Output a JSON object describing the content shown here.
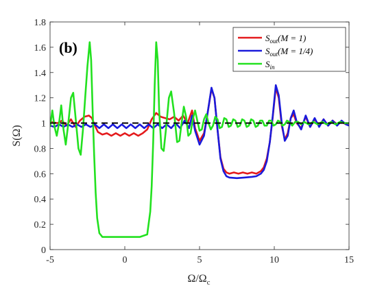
{
  "chart_data": {
    "type": "line",
    "panel_label": "(b)",
    "xlabel": "Ω/Ω",
    "xlabel_sub": "c",
    "ylabel": "S(Ω)",
    "xlim": [
      -5,
      15
    ],
    "ylim": [
      0,
      1.8
    ],
    "xticks": [
      -5,
      0,
      5,
      10,
      15
    ],
    "yticks": [
      0,
      0.2,
      0.4,
      0.6,
      0.8,
      1,
      1.2,
      1.4,
      1.6,
      1.8
    ],
    "xtick_labels": [
      "-5",
      "0",
      "5",
      "10",
      "15"
    ],
    "ytick_labels": [
      "0",
      "0.2",
      "0.4",
      "0.6",
      "0.8",
      "1",
      "1.2",
      "1.4",
      "1.6",
      "1.8"
    ],
    "grid": false,
    "legend_position": "top-right",
    "reference_line": {
      "y": 1,
      "style": "dashed",
      "color": "#000000"
    },
    "series": [
      {
        "name": "S_out(M = 1)",
        "legend_main": "S",
        "legend_sub": "out",
        "legend_tail": "(M = 1)",
        "color": "#e41a1c",
        "points": [
          [
            -5,
            1.01
          ],
          [
            -4.5,
            1.0
          ],
          [
            -4.2,
            1.02
          ],
          [
            -3.9,
            0.98
          ],
          [
            -3.6,
            1.03
          ],
          [
            -3.3,
            0.97
          ],
          [
            -3.0,
            1.02
          ],
          [
            -2.7,
            1.05
          ],
          [
            -2.4,
            1.06
          ],
          [
            -2.2,
            1.04
          ],
          [
            -2.0,
            0.98
          ],
          [
            -1.8,
            0.93
          ],
          [
            -1.5,
            0.91
          ],
          [
            -1.2,
            0.92
          ],
          [
            -0.9,
            0.9
          ],
          [
            -0.6,
            0.92
          ],
          [
            -0.3,
            0.9
          ],
          [
            0.0,
            0.92
          ],
          [
            0.3,
            0.9
          ],
          [
            0.6,
            0.92
          ],
          [
            0.9,
            0.9
          ],
          [
            1.2,
            0.92
          ],
          [
            1.5,
            0.95
          ],
          [
            1.8,
            1.03
          ],
          [
            2.1,
            1.08
          ],
          [
            2.4,
            1.05
          ],
          [
            2.7,
            1.04
          ],
          [
            3.0,
            1.03
          ],
          [
            3.3,
            1.05
          ],
          [
            3.6,
            1.02
          ],
          [
            3.9,
            1.06
          ],
          [
            4.2,
            1.0
          ],
          [
            4.5,
            1.1
          ],
          [
            4.7,
            0.96
          ],
          [
            5.0,
            0.86
          ],
          [
            5.3,
            0.92
          ],
          [
            5.5,
            1.05
          ],
          [
            5.8,
            1.27
          ],
          [
            6.0,
            1.2
          ],
          [
            6.2,
            0.95
          ],
          [
            6.4,
            0.73
          ],
          [
            6.6,
            0.64
          ],
          [
            6.8,
            0.61
          ],
          [
            7.0,
            0.6
          ],
          [
            7.3,
            0.61
          ],
          [
            7.6,
            0.6
          ],
          [
            7.9,
            0.61
          ],
          [
            8.2,
            0.6
          ],
          [
            8.5,
            0.61
          ],
          [
            8.8,
            0.6
          ],
          [
            9.1,
            0.62
          ],
          [
            9.3,
            0.65
          ],
          [
            9.5,
            0.72
          ],
          [
            9.7,
            0.85
          ],
          [
            9.9,
            1.05
          ],
          [
            10.1,
            1.28
          ],
          [
            10.3,
            1.2
          ],
          [
            10.5,
            0.98
          ],
          [
            10.7,
            0.87
          ],
          [
            10.9,
            0.92
          ],
          [
            11.1,
            1.04
          ],
          [
            11.3,
            1.07
          ],
          [
            11.5,
            1.0
          ],
          [
            11.8,
            0.96
          ],
          [
            12.1,
            1.05
          ],
          [
            12.4,
            0.97
          ],
          [
            12.7,
            1.03
          ],
          [
            13.0,
            0.98
          ],
          [
            13.3,
            1.03
          ],
          [
            13.6,
            0.98
          ],
          [
            13.9,
            1.02
          ],
          [
            14.2,
            0.99
          ],
          [
            14.5,
            1.01
          ],
          [
            14.8,
            0.99
          ],
          [
            15,
            1.0
          ]
        ]
      },
      {
        "name": "S_out(M = 1/4)",
        "legend_main": "S",
        "legend_sub": "out",
        "legend_tail": "(M = 1/4)",
        "color": "#1a1adb",
        "points": [
          [
            -5,
            0.98
          ],
          [
            -4.7,
            0.97
          ],
          [
            -4.4,
            0.99
          ],
          [
            -4.1,
            0.97
          ],
          [
            -3.8,
            0.99
          ],
          [
            -3.5,
            0.97
          ],
          [
            -3.2,
            0.99
          ],
          [
            -2.9,
            0.97
          ],
          [
            -2.6,
            0.99
          ],
          [
            -2.3,
            0.97
          ],
          [
            -2.0,
            0.99
          ],
          [
            -1.7,
            0.96
          ],
          [
            -1.4,
            0.99
          ],
          [
            -1.1,
            0.96
          ],
          [
            -0.8,
            0.99
          ],
          [
            -0.5,
            0.96
          ],
          [
            -0.2,
            0.99
          ],
          [
            0.1,
            0.96
          ],
          [
            0.4,
            0.99
          ],
          [
            0.7,
            0.96
          ],
          [
            1.0,
            0.99
          ],
          [
            1.3,
            0.96
          ],
          [
            1.6,
            0.99
          ],
          [
            1.9,
            0.96
          ],
          [
            2.2,
            0.99
          ],
          [
            2.5,
            0.96
          ],
          [
            2.8,
            0.99
          ],
          [
            3.1,
            0.96
          ],
          [
            3.4,
            1.0
          ],
          [
            3.7,
            0.96
          ],
          [
            4.0,
            1.02
          ],
          [
            4.3,
            0.96
          ],
          [
            4.5,
            1.06
          ],
          [
            4.7,
            0.94
          ],
          [
            5.0,
            0.83
          ],
          [
            5.3,
            0.9
          ],
          [
            5.5,
            1.05
          ],
          [
            5.8,
            1.28
          ],
          [
            6.0,
            1.2
          ],
          [
            6.2,
            0.95
          ],
          [
            6.4,
            0.72
          ],
          [
            6.6,
            0.62
          ],
          [
            6.8,
            0.58
          ],
          [
            7.0,
            0.57
          ],
          [
            7.5,
            0.565
          ],
          [
            8.0,
            0.57
          ],
          [
            8.5,
            0.575
          ],
          [
            8.8,
            0.58
          ],
          [
            9.1,
            0.6
          ],
          [
            9.3,
            0.63
          ],
          [
            9.5,
            0.7
          ],
          [
            9.7,
            0.85
          ],
          [
            9.9,
            1.06
          ],
          [
            10.1,
            1.3
          ],
          [
            10.3,
            1.22
          ],
          [
            10.5,
            1.0
          ],
          [
            10.7,
            0.86
          ],
          [
            10.9,
            0.9
          ],
          [
            11.1,
            1.04
          ],
          [
            11.3,
            1.1
          ],
          [
            11.5,
            1.01
          ],
          [
            11.8,
            0.95
          ],
          [
            12.1,
            1.06
          ],
          [
            12.4,
            0.97
          ],
          [
            12.7,
            1.04
          ],
          [
            13.0,
            0.97
          ],
          [
            13.3,
            1.03
          ],
          [
            13.6,
            0.98
          ],
          [
            13.9,
            1.02
          ],
          [
            14.2,
            0.98
          ],
          [
            14.5,
            1.02
          ],
          [
            14.8,
            0.99
          ],
          [
            15,
            0.98
          ]
        ]
      },
      {
        "name": "S_in",
        "legend_main": "S",
        "legend_sub": "in",
        "legend_tail": "",
        "color": "#22e11f",
        "points": [
          [
            -5,
            0.97
          ],
          [
            -4.85,
            1.1
          ],
          [
            -4.7,
            0.97
          ],
          [
            -4.55,
            0.9
          ],
          [
            -4.4,
            1.0
          ],
          [
            -4.25,
            1.14
          ],
          [
            -4.1,
            0.95
          ],
          [
            -3.95,
            0.83
          ],
          [
            -3.8,
            0.98
          ],
          [
            -3.6,
            1.2
          ],
          [
            -3.45,
            1.24
          ],
          [
            -3.3,
            1.05
          ],
          [
            -3.1,
            0.8
          ],
          [
            -2.95,
            0.75
          ],
          [
            -2.8,
            0.95
          ],
          [
            -2.65,
            1.2
          ],
          [
            -2.5,
            1.45
          ],
          [
            -2.35,
            1.64
          ],
          [
            -2.25,
            1.5
          ],
          [
            -2.15,
            1.1
          ],
          [
            -2.05,
            0.75
          ],
          [
            -1.95,
            0.45
          ],
          [
            -1.85,
            0.25
          ],
          [
            -1.7,
            0.13
          ],
          [
            -1.5,
            0.1
          ],
          [
            -1.0,
            0.1
          ],
          [
            0.0,
            0.1
          ],
          [
            1.0,
            0.1
          ],
          [
            1.5,
            0.12
          ],
          [
            1.7,
            0.3
          ],
          [
            1.8,
            0.5
          ],
          [
            1.9,
            0.85
          ],
          [
            2.0,
            1.3
          ],
          [
            2.1,
            1.64
          ],
          [
            2.2,
            1.5
          ],
          [
            2.3,
            1.1
          ],
          [
            2.45,
            0.8
          ],
          [
            2.6,
            0.78
          ],
          [
            2.75,
            0.95
          ],
          [
            2.95,
            1.2
          ],
          [
            3.1,
            1.25
          ],
          [
            3.3,
            1.08
          ],
          [
            3.5,
            0.85
          ],
          [
            3.65,
            0.86
          ],
          [
            3.8,
            1.0
          ],
          [
            3.95,
            1.13
          ],
          [
            4.1,
            1.05
          ],
          [
            4.25,
            0.9
          ],
          [
            4.4,
            0.92
          ],
          [
            4.55,
            1.03
          ],
          [
            4.7,
            1.1
          ],
          [
            4.85,
            1.02
          ],
          [
            5.0,
            0.94
          ],
          [
            5.15,
            0.95
          ],
          [
            5.3,
            1.03
          ],
          [
            5.45,
            1.07
          ],
          [
            5.6,
            1.0
          ],
          [
            5.75,
            0.95
          ],
          [
            5.9,
            0.98
          ],
          [
            6.05,
            1.05
          ],
          [
            6.2,
            1.03
          ],
          [
            6.35,
            0.96
          ],
          [
            6.5,
            0.97
          ],
          [
            6.65,
            1.04
          ],
          [
            6.8,
            1.03
          ],
          [
            6.95,
            0.97
          ],
          [
            7.1,
            0.98
          ],
          [
            7.25,
            1.03
          ],
          [
            7.4,
            1.02
          ],
          [
            7.55,
            0.97
          ],
          [
            7.7,
            0.98
          ],
          [
            7.85,
            1.03
          ],
          [
            8.0,
            1.02
          ],
          [
            8.15,
            0.97
          ],
          [
            8.3,
            0.98
          ],
          [
            8.45,
            1.03
          ],
          [
            8.6,
            1.02
          ],
          [
            8.75,
            0.97
          ],
          [
            8.9,
            0.98
          ],
          [
            9.05,
            1.02
          ],
          [
            9.2,
            1.02
          ],
          [
            9.35,
            0.98
          ],
          [
            9.5,
            0.98
          ],
          [
            9.65,
            1.02
          ],
          [
            9.8,
            1.02
          ],
          [
            9.95,
            0.98
          ],
          [
            10.1,
            0.99
          ],
          [
            10.25,
            1.02
          ],
          [
            10.4,
            1.01
          ],
          [
            10.55,
            0.98
          ],
          [
            10.7,
            0.99
          ],
          [
            10.85,
            1.02
          ],
          [
            11.0,
            1.01
          ],
          [
            11.2,
            0.98
          ],
          [
            11.4,
            1.01
          ],
          [
            11.6,
            1.01
          ],
          [
            11.8,
            0.99
          ],
          [
            12.0,
            1.01
          ],
          [
            12.3,
            0.99
          ],
          [
            12.6,
            1.01
          ],
          [
            12.9,
            0.99
          ],
          [
            13.2,
            1.01
          ],
          [
            13.5,
            0.99
          ],
          [
            13.8,
            1.01
          ],
          [
            14.1,
            0.99
          ],
          [
            14.4,
            1.01
          ],
          [
            14.7,
            1.0
          ],
          [
            15,
            1.0
          ]
        ]
      }
    ]
  }
}
